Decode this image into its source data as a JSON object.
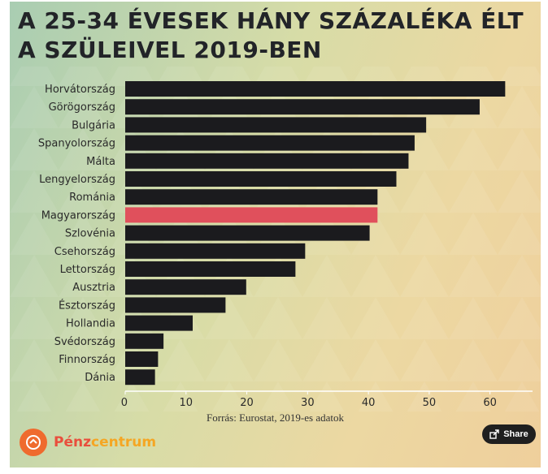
{
  "title": "A 25-34 ÉVESEK HÁNY SZÁZALÉKA ÉLT A SZÜLEIVEL 2019-BEN",
  "source": "Forrás: Eurostat, 2019-es adatok",
  "brand": {
    "name_part1": "Pénz",
    "name_part2": "centrum"
  },
  "share_label": "Share",
  "colors": {
    "bar": "#1b1b1e",
    "highlight": "#e0505c",
    "axis": "#ffffff"
  },
  "chart_data": {
    "type": "bar",
    "orientation": "horizontal",
    "title": "A 25-34 ÉVESEK HÁNY SZÁZALÉKA ÉLT A SZÜLEIVEL 2019-BEN",
    "categories": [
      "Horvátország",
      "Görögország",
      "Bulgária",
      "Spanyolország",
      "Málta",
      "Lengyelország",
      "Románia",
      "Magyarország",
      "Szlovénia",
      "Csehország",
      "Lettország",
      "Ausztria",
      "Észtország",
      "Hollandia",
      "Svédország",
      "Finnország",
      "Dánia"
    ],
    "values": [
      62.5,
      58.3,
      49.5,
      47.6,
      46.6,
      44.6,
      41.5,
      41.5,
      40.2,
      29.6,
      28.0,
      19.9,
      16.5,
      11.1,
      6.3,
      5.4,
      4.9
    ],
    "highlight": "Magyarország",
    "xticks": [
      0,
      10,
      20,
      30,
      40,
      50,
      60
    ],
    "xlim": [
      0,
      67
    ],
    "grid": false,
    "xlabel": "",
    "ylabel": ""
  }
}
